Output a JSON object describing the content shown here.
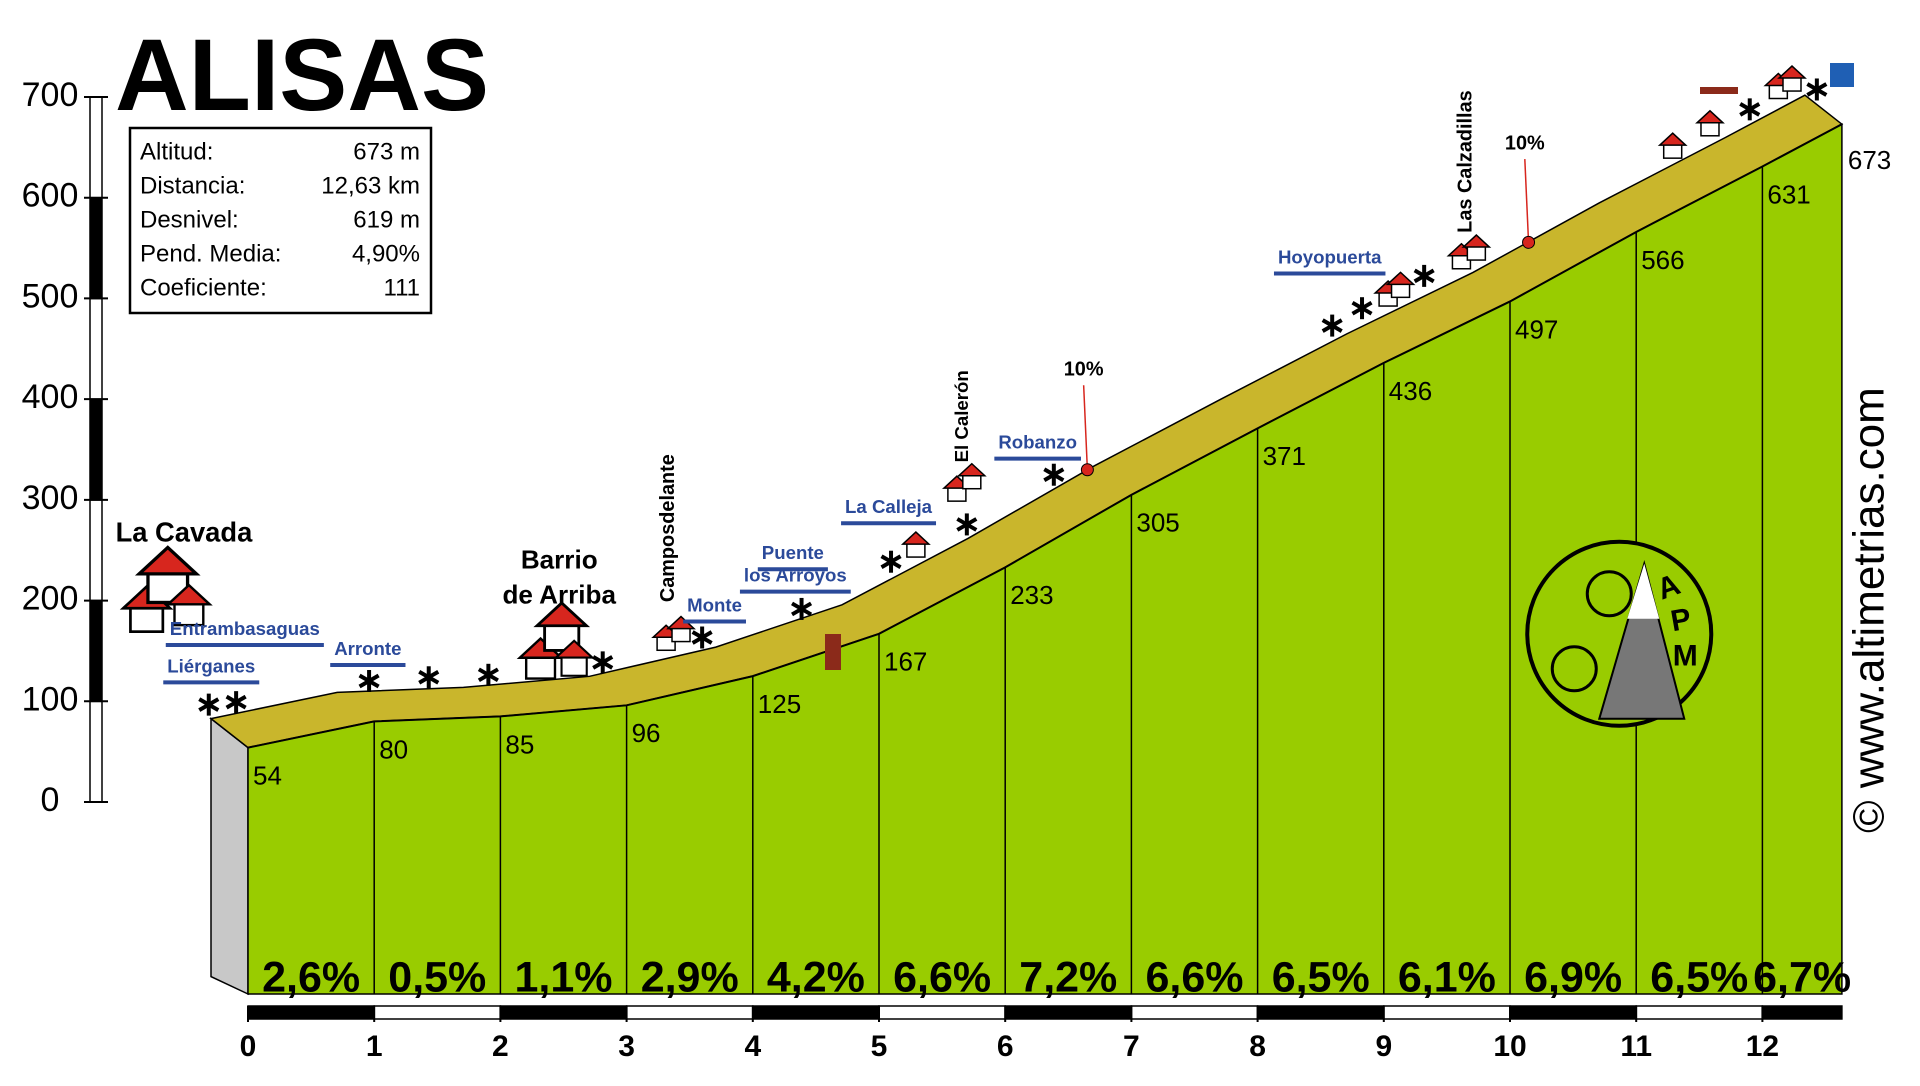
{
  "chart_data": {
    "type": "profile",
    "title": "ALISAS",
    "x": [
      0,
      1,
      2,
      3,
      4,
      5,
      6,
      7,
      8,
      9,
      10,
      11,
      12,
      12.63
    ],
    "values": [
      54,
      80,
      85,
      96,
      125,
      167,
      233,
      305,
      371,
      436,
      497,
      566,
      631,
      673
    ],
    "segments": {
      "values": [
        2.6,
        0.5,
        1.1,
        2.9,
        4.2,
        6.6,
        7.2,
        6.6,
        6.5,
        6.1,
        6.9,
        6.5,
        6.7
      ],
      "value_labels": [
        "2,6%",
        "0,5%",
        "1,1%",
        "2,9%",
        "4,2%",
        "6,6%",
        "7,2%",
        "6,6%",
        "6,5%",
        "6,1%",
        "6,9%",
        "6,5%",
        "6,7%"
      ]
    },
    "xlim": [
      0,
      12.63
    ],
    "xticks": [
      0,
      1,
      2,
      3,
      4,
      5,
      6,
      7,
      8,
      9,
      10,
      11,
      12
    ],
    "ylim": [
      0,
      700
    ],
    "yticks": [
      0,
      100,
      200,
      300,
      400,
      500,
      600,
      700
    ],
    "colors": {
      "profile": "#99cc00",
      "band": "#c9b62c",
      "side": "#c8c8c8"
    },
    "info": [
      {
        "label": "Altitud:",
        "value": "673 m"
      },
      {
        "label": "Distancia:",
        "value": "12,63 km"
      },
      {
        "label": "Desnivel:",
        "value": "619 m"
      },
      {
        "label": "Pend. Media:",
        "value": "4,90%"
      },
      {
        "label": "Coeficiente:",
        "value": "111"
      }
    ],
    "places": [
      "La Cavada",
      "Entrambasaguas",
      "Liérganes",
      "Arronte",
      "Barrio",
      "de Arriba",
      "Camposdelante",
      "Monte",
      "Puente",
      "los Arroyos",
      "La Calleja",
      "El Calerón",
      "Robanzo",
      "10%",
      "Hoyopuerta",
      "Las Calzadillas",
      "10%"
    ],
    "credit": "© www.altimetrias.com",
    "logo": "APM"
  }
}
